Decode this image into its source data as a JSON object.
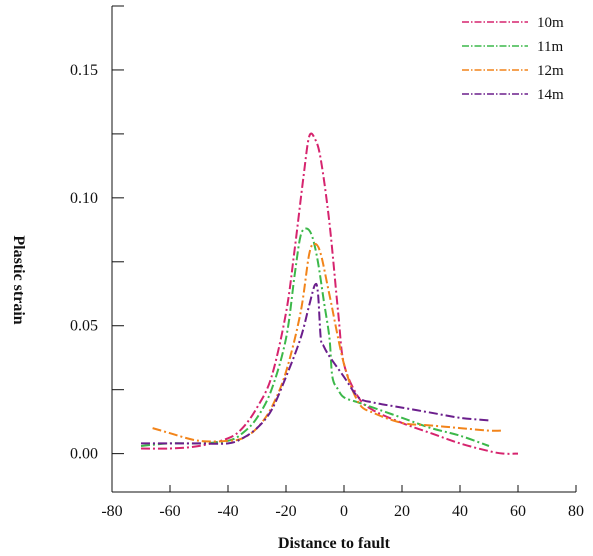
{
  "chart_data": {
    "type": "line",
    "title": "",
    "xlabel": "Distance to fault",
    "ylabel": "Plastic strain",
    "xlim": [
      -80,
      80
    ],
    "ylim": [
      -0.015,
      0.175
    ],
    "xticks": [
      -80,
      -60,
      -40,
      -20,
      0,
      20,
      40,
      60,
      80
    ],
    "xtick_labels": [
      "-80",
      "-60",
      "-40",
      "-20",
      "0",
      "20",
      "40",
      "60",
      "80"
    ],
    "yticks": [
      0.0,
      0.05,
      0.1,
      0.15
    ],
    "ytick_labels": [
      "0.00",
      "0.05",
      "0.10",
      "0.15"
    ],
    "yminor_ticks": [
      0.025,
      0.075,
      0.125,
      0.175
    ],
    "grid": false,
    "legend_position": "top-right",
    "series": [
      {
        "name": "10m",
        "color": "#d6246e",
        "x": [
          -70,
          -60,
          -50,
          -40,
          -35,
          -30,
          -25,
          -20,
          -17,
          -14,
          -12,
          -10,
          -8,
          -5,
          -2,
          0,
          5,
          10,
          20,
          30,
          40,
          50,
          55,
          60
        ],
        "y": [
          0.002,
          0.002,
          0.003,
          0.006,
          0.01,
          0.018,
          0.03,
          0.055,
          0.08,
          0.108,
          0.124,
          0.123,
          0.115,
          0.09,
          0.055,
          0.035,
          0.022,
          0.017,
          0.012,
          0.008,
          0.004,
          0.001,
          0.0,
          0.0
        ]
      },
      {
        "name": "11m",
        "color": "#3cb84a",
        "x": [
          -70,
          -60,
          -50,
          -40,
          -35,
          -30,
          -25,
          -20,
          -17,
          -15,
          -13,
          -11,
          -9,
          -7,
          -5,
          -4,
          -2,
          0,
          5,
          10,
          20,
          30,
          40,
          50
        ],
        "y": [
          0.003,
          0.004,
          0.004,
          0.005,
          0.008,
          0.014,
          0.025,
          0.045,
          0.07,
          0.085,
          0.088,
          0.085,
          0.075,
          0.06,
          0.045,
          0.03,
          0.025,
          0.022,
          0.02,
          0.018,
          0.014,
          0.01,
          0.007,
          0.003
        ]
      },
      {
        "name": "12m",
        "color": "#f2841a",
        "x": [
          -66,
          -60,
          -50,
          -40,
          -35,
          -30,
          -25,
          -20,
          -15,
          -12,
          -10,
          -8,
          -5,
          0,
          5,
          10,
          20,
          30,
          40,
          50,
          55
        ],
        "y": [
          0.01,
          0.008,
          0.005,
          0.005,
          0.006,
          0.01,
          0.018,
          0.032,
          0.055,
          0.078,
          0.082,
          0.078,
          0.062,
          0.035,
          0.02,
          0.016,
          0.012,
          0.011,
          0.01,
          0.009,
          0.009
        ]
      },
      {
        "name": "14m",
        "color": "#6b1e8c",
        "x": [
          -70,
          -60,
          -50,
          -40,
          -35,
          -30,
          -25,
          -20,
          -15,
          -12,
          -10,
          -9,
          -8,
          -7,
          -5,
          0,
          5,
          10,
          20,
          30,
          40,
          50
        ],
        "y": [
          0.004,
          0.004,
          0.004,
          0.004,
          0.006,
          0.01,
          0.017,
          0.03,
          0.045,
          0.058,
          0.066,
          0.063,
          0.045,
          0.042,
          0.038,
          0.03,
          0.022,
          0.02,
          0.018,
          0.016,
          0.014,
          0.013
        ]
      }
    ]
  }
}
